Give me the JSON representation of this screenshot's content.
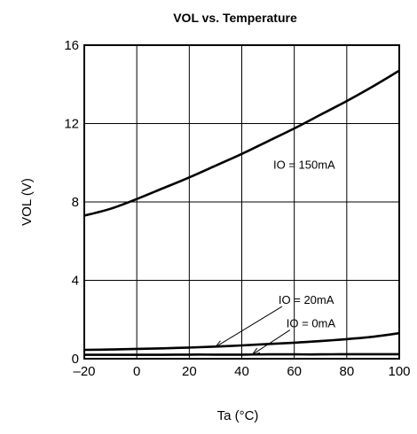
{
  "chart_data": {
    "type": "line",
    "title": "VOL vs. Temperature",
    "xlabel": "Ta (°C)",
    "ylabel": "VOL (V)",
    "xlim": [
      -20,
      100
    ],
    "ylim": [
      0,
      16
    ],
    "x_ticks": [
      -20,
      0,
      20,
      40,
      60,
      80,
      100
    ],
    "y_ticks": [
      0,
      4,
      8,
      12,
      16
    ],
    "grid": true,
    "x": [
      -20,
      -10,
      0,
      10,
      20,
      30,
      40,
      50,
      60,
      70,
      80,
      90,
      100
    ],
    "series": [
      {
        "name": "IO = 150mA",
        "values": [
          7.3,
          7.65,
          8.15,
          8.7,
          9.25,
          9.85,
          10.45,
          11.1,
          11.75,
          12.45,
          13.15,
          13.9,
          14.7
        ]
      },
      {
        "name": "IO = 20mA",
        "values": [
          0.45,
          0.47,
          0.5,
          0.53,
          0.57,
          0.62,
          0.68,
          0.75,
          0.82,
          0.9,
          1.0,
          1.12,
          1.3
        ]
      },
      {
        "name": "IO = 0mA",
        "values": [
          0.2,
          0.2,
          0.2,
          0.2,
          0.21,
          0.21,
          0.21,
          0.22,
          0.22,
          0.22,
          0.23,
          0.23,
          0.23
        ]
      }
    ],
    "annotations": [
      {
        "text": "IO = 150mA",
        "x": 52,
        "y": 9.7
      },
      {
        "text": "IO = 20mA",
        "x": 54,
        "y": 2.8,
        "arrow_to": [
          30,
          0.6
        ]
      },
      {
        "text": "IO = 0mA",
        "x": 57,
        "y": 1.6,
        "arrow_to": [
          44,
          0.21
        ]
      }
    ]
  }
}
